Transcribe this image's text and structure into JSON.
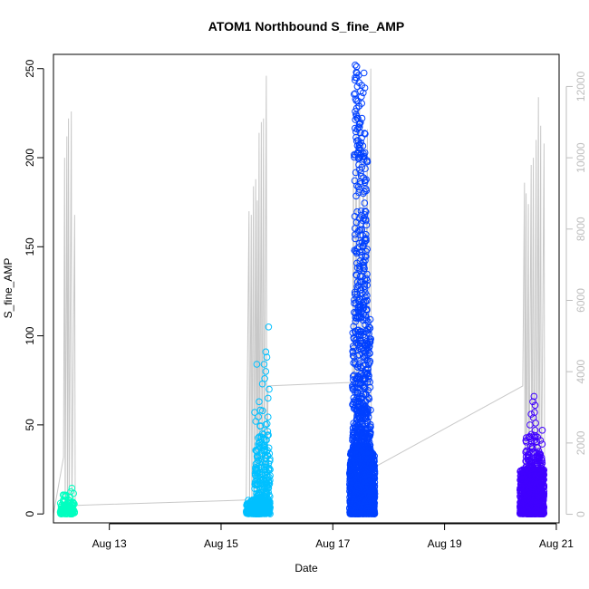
{
  "chart_data": {
    "type": "scatter",
    "title": "ATOM1 Northbound S_fine_AMP",
    "xlabel": "Date",
    "ylabel": "S_fine_AMP",
    "x_unit": "day of August",
    "xlim": [
      12.0,
      21.05
    ],
    "ylim": [
      -5,
      258
    ],
    "x_ticks": [
      {
        "value": 13,
        "label": "Aug 13"
      },
      {
        "value": 15,
        "label": "Aug 15"
      },
      {
        "value": 17,
        "label": "Aug 17"
      },
      {
        "value": 19,
        "label": "Aug 19"
      },
      {
        "value": 21,
        "label": "Aug 21"
      }
    ],
    "y_ticks": [
      0,
      50,
      100,
      150,
      200,
      250
    ],
    "y2_ticks": [
      0,
      2000,
      4000,
      6000,
      8000,
      10000,
      12000
    ],
    "y2lim": [
      -240,
      12900
    ],
    "colors": {
      "axis": "#000000",
      "secondary_axis": "#bebebe",
      "secondary_line": "#c8c8c8"
    },
    "series": [
      {
        "day": 12.2,
        "color": "#00FFC0",
        "clusters": [
          {
            "x": [
              12.12,
              12.38
            ],
            "y": [
              0,
              7
            ],
            "n": 110
          },
          {
            "x": [
              12.16,
              12.36
            ],
            "y": [
              6,
              11
            ],
            "n": 14
          }
        ],
        "points": [
          [
            12.33,
            14.5
          ],
          [
            12.31,
            12.5
          ],
          [
            12.36,
            11.5
          ],
          [
            12.22,
            10.5
          ]
        ]
      },
      {
        "day": 15.6,
        "color": "#00C0FF",
        "clusters": [
          {
            "x": [
              15.45,
              15.88
            ],
            "y": [
              0,
              8
            ],
            "n": 260
          },
          {
            "x": [
              15.6,
              15.88
            ],
            "y": [
              8,
              40
            ],
            "n": 150
          },
          {
            "x": [
              15.65,
              15.85
            ],
            "y": [
              40,
              60
            ],
            "n": 22
          }
        ],
        "points": [
          [
            15.85,
            105
          ],
          [
            15.8,
            91
          ],
          [
            15.82,
            88
          ],
          [
            15.77,
            84
          ],
          [
            15.64,
            84
          ],
          [
            15.8,
            80
          ],
          [
            15.78,
            76
          ],
          [
            15.74,
            73
          ],
          [
            15.86,
            70
          ],
          [
            15.6,
            57
          ],
          [
            15.68,
            63
          ],
          [
            15.84,
            65
          ],
          [
            15.62,
            52
          ]
        ]
      },
      {
        "day": 17.5,
        "color": "#0040FF",
        "clusters": [
          {
            "x": [
              17.3,
              17.75
            ],
            "y": [
              0,
              35
            ],
            "n": 1100
          },
          {
            "x": [
              17.35,
              17.68
            ],
            "y": [
              35,
              110
            ],
            "n": 420
          },
          {
            "x": [
              17.38,
              17.62
            ],
            "y": [
              110,
              200
            ],
            "n": 160
          },
          {
            "x": [
              17.38,
              17.58
            ],
            "y": [
              200,
              252
            ],
            "n": 60
          }
        ],
        "points": [
          [
            17.4,
            252
          ],
          [
            17.42,
            248
          ],
          [
            17.4,
            245
          ],
          [
            17.44,
            240
          ],
          [
            17.4,
            236
          ],
          [
            17.42,
            232
          ],
          [
            17.47,
            229
          ],
          [
            17.4,
            226
          ],
          [
            17.45,
            222
          ]
        ]
      },
      {
        "day": 20.6,
        "color": "#4000FF",
        "clusters": [
          {
            "x": [
              20.35,
              20.78
            ],
            "y": [
              0,
              25
            ],
            "n": 800
          },
          {
            "x": [
              20.45,
              20.75
            ],
            "y": [
              25,
              45
            ],
            "n": 90
          }
        ],
        "points": [
          [
            20.6,
            66
          ],
          [
            20.58,
            63
          ],
          [
            20.62,
            61
          ],
          [
            20.61,
            57
          ],
          [
            20.55,
            56
          ],
          [
            20.59,
            54
          ],
          [
            20.63,
            51
          ],
          [
            20.62,
            47
          ],
          [
            20.75,
            47
          ],
          [
            20.53,
            50
          ]
        ]
      }
    ],
    "secondary_series": {
      "axis": "right",
      "style": "line",
      "color": "#c8c8c8",
      "points": [
        [
          12.0,
          2
        ],
        [
          12.18,
          1600
        ],
        [
          12.2,
          10000
        ],
        [
          12.21,
          2
        ],
        [
          12.24,
          10600
        ],
        [
          12.25,
          2
        ],
        [
          12.27,
          11100
        ],
        [
          12.28,
          2
        ],
        [
          12.32,
          11300
        ],
        [
          12.33,
          2
        ],
        [
          12.38,
          8400
        ],
        [
          12.39,
          2
        ],
        [
          12.4,
          250
        ],
        [
          15.45,
          400
        ],
        [
          15.5,
          8500
        ],
        [
          15.51,
          1
        ],
        [
          15.54,
          8400
        ],
        [
          15.55,
          1
        ],
        [
          15.58,
          9200
        ],
        [
          15.59,
          1
        ],
        [
          15.62,
          9400
        ],
        [
          15.63,
          1
        ],
        [
          15.65,
          8800
        ],
        [
          15.66,
          1
        ],
        [
          15.68,
          10700
        ],
        [
          15.69,
          1
        ],
        [
          15.72,
          11000
        ],
        [
          15.73,
          1
        ],
        [
          15.76,
          11100
        ],
        [
          15.77,
          1
        ],
        [
          15.81,
          12300
        ],
        [
          15.82,
          1
        ],
        [
          15.84,
          3600
        ],
        [
          17.35,
          3700
        ],
        [
          17.37,
          10200
        ],
        [
          17.38,
          1
        ],
        [
          17.42,
          11300
        ],
        [
          17.43,
          1
        ],
        [
          17.48,
          11500
        ],
        [
          17.49,
          1
        ],
        [
          17.55,
          10500
        ],
        [
          17.56,
          1
        ],
        [
          17.62,
          10800
        ],
        [
          17.63,
          1
        ],
        [
          17.68,
          12500
        ],
        [
          17.69,
          1
        ],
        [
          17.72,
          1300
        ],
        [
          20.4,
          3600
        ],
        [
          20.43,
          9300
        ],
        [
          20.44,
          1
        ],
        [
          20.46,
          9000
        ],
        [
          20.47,
          1
        ],
        [
          20.5,
          8700
        ],
        [
          20.51,
          1
        ],
        [
          20.55,
          9800
        ],
        [
          20.56,
          1
        ],
        [
          20.59,
          10000
        ],
        [
          20.6,
          1
        ],
        [
          20.64,
          10500
        ],
        [
          20.65,
          1
        ],
        [
          20.68,
          11700
        ],
        [
          20.69,
          1
        ],
        [
          20.72,
          10900
        ],
        [
          20.73,
          1
        ],
        [
          20.78,
          10400
        ],
        [
          20.79,
          400
        ]
      ]
    }
  }
}
